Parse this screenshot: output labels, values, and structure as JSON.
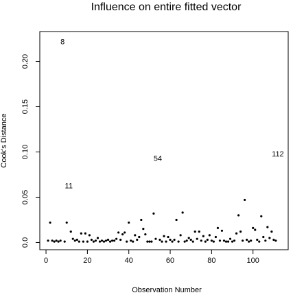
{
  "chart_data": {
    "type": "scatter",
    "title": "Influence on entire fitted vector",
    "xlabel": "Observation Number",
    "ylabel": "Cook's Distance",
    "xlim": [
      -3,
      117
    ],
    "ylim": [
      -0.008,
      0.233
    ],
    "x_ticks": [
      0,
      20,
      40,
      60,
      80,
      100
    ],
    "y_ticks": [
      0.0,
      0.05,
      0.1,
      0.15,
      0.2
    ],
    "y_tick_labels": [
      "0.0",
      "0.05",
      "0.10",
      "0.15",
      "0.20"
    ],
    "grid": false,
    "legend": "none",
    "series": [
      {
        "marker": "dot",
        "x": [
          1,
          2,
          3,
          4,
          5,
          6,
          7,
          8,
          9,
          10,
          11,
          12,
          13,
          14,
          15,
          16,
          17,
          18,
          19,
          20,
          21,
          22,
          23,
          24,
          25,
          26,
          27,
          28,
          29,
          30,
          31,
          32,
          33,
          34,
          35,
          36,
          37,
          38,
          39,
          40,
          41,
          42,
          43,
          44,
          45,
          46,
          47,
          48,
          49,
          50,
          51,
          52,
          53,
          54,
          55,
          56,
          57,
          58,
          59,
          60,
          61,
          62,
          63,
          64,
          65,
          66,
          67,
          68,
          69,
          70,
          71,
          72,
          73,
          74,
          75,
          76,
          77,
          78,
          79,
          80,
          81,
          82,
          83,
          84,
          85,
          86,
          87,
          88,
          89,
          90,
          91,
          92,
          93,
          94,
          95,
          96,
          97,
          98,
          99,
          100,
          101,
          102,
          103,
          104,
          105,
          106,
          107,
          108,
          109,
          110,
          111,
          112
        ],
        "y": [
          0.002,
          0.022,
          0.002,
          0.001,
          0.002,
          0.001,
          0.002,
          0.222,
          0.001,
          0.022,
          0.063,
          0.012,
          0.004,
          0.002,
          0.003,
          0.001,
          0.01,
          0.001,
          0.01,
          0.001,
          0.008,
          0.003,
          0.001,
          0.002,
          0.005,
          0.001,
          0.002,
          0.001,
          0.002,
          0.003,
          0.001,
          0.002,
          0.002,
          0.004,
          0.011,
          0.003,
          0.009,
          0.011,
          0.001,
          0.022,
          0.002,
          0.001,
          0.008,
          0.003,
          0.006,
          0.025,
          0.015,
          0.009,
          0.001,
          0.001,
          0.001,
          0.032,
          0.004,
          0.093,
          0.003,
          0.001,
          0.007,
          0.001,
          0.006,
          0.003,
          0.001,
          0.003,
          0.025,
          0.001,
          0.008,
          0.033,
          0.001,
          0.002,
          0.005,
          0.003,
          0.001,
          0.012,
          0.004,
          0.012,
          0.002,
          0.007,
          0.001,
          0.003,
          0.008,
          0.002,
          0.001,
          0.006,
          0.016,
          0.002,
          0.013,
          0.002,
          0.001,
          0.001,
          0.004,
          0.001,
          0.002,
          0.01,
          0.03,
          0.012,
          0.002,
          0.047,
          0.003,
          0.001,
          0.002,
          0.016,
          0.014,
          0.003,
          0.001,
          0.029,
          0.006,
          0.002,
          0.017,
          0.005,
          0.012,
          0.003,
          0.002,
          0.098
        ]
      }
    ],
    "annotations": [
      {
        "x": 8,
        "y": 0.222,
        "text": "8"
      },
      {
        "x": 11,
        "y": 0.063,
        "text": "11"
      },
      {
        "x": 54,
        "y": 0.093,
        "text": "54"
      },
      {
        "x": 112,
        "y": 0.098,
        "text": "112"
      }
    ]
  }
}
